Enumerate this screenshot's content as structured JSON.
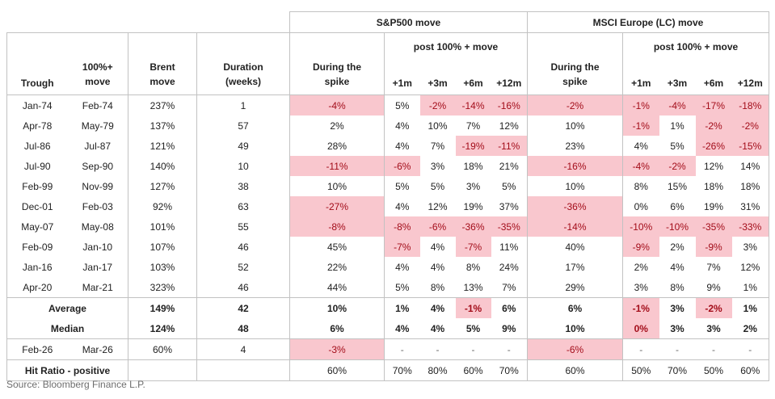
{
  "chart_data": {
    "type": "table",
    "group_headers": {
      "sp": "S&P500 move",
      "msci": "MSCI Europe (LC) move"
    },
    "sub_headers": {
      "post": "post 100% + move",
      "during": "During the spike",
      "months": [
        "+1m",
        "+3m",
        "+6m",
        "+12m"
      ]
    },
    "left_headers": {
      "trough": "Trough",
      "move": "100%+ move",
      "brent": "Brent move",
      "duration": "Duration (weeks)"
    },
    "colors": {
      "highlight_bg": "#f9c7ce",
      "highlight_text": "#a30d1a",
      "border": "#c2c2c2"
    },
    "rows": [
      {
        "section": "history",
        "trough": "Jan-74",
        "move": "Feb-74",
        "brent": "237%",
        "duration": "1",
        "sp": [
          {
            "v": "-4%",
            "hl": true
          },
          {
            "v": "5%"
          },
          {
            "v": "-2%",
            "hl": true
          },
          {
            "v": "-14%",
            "hl": true
          },
          {
            "v": "-16%",
            "hl": true
          }
        ],
        "msci": [
          {
            "v": "-2%",
            "hl": true
          },
          {
            "v": "-1%",
            "hl": true
          },
          {
            "v": "-4%",
            "hl": true
          },
          {
            "v": "-17%",
            "hl": true
          },
          {
            "v": "-18%",
            "hl": true
          }
        ]
      },
      {
        "section": "history",
        "trough": "Apr-78",
        "move": "May-79",
        "brent": "137%",
        "duration": "57",
        "sp": [
          {
            "v": "2%"
          },
          {
            "v": "4%"
          },
          {
            "v": "10%"
          },
          {
            "v": "7%"
          },
          {
            "v": "12%"
          }
        ],
        "msci": [
          {
            "v": "10%"
          },
          {
            "v": "-1%",
            "hl": true
          },
          {
            "v": "1%"
          },
          {
            "v": "-2%",
            "hl": true
          },
          {
            "v": "-2%",
            "hl": true
          }
        ]
      },
      {
        "section": "history",
        "trough": "Jul-86",
        "move": "Jul-87",
        "brent": "121%",
        "duration": "49",
        "sp": [
          {
            "v": "28%"
          },
          {
            "v": "4%"
          },
          {
            "v": "7%"
          },
          {
            "v": "-19%",
            "hl": true
          },
          {
            "v": "-11%",
            "hl": true
          }
        ],
        "msci": [
          {
            "v": "23%"
          },
          {
            "v": "4%"
          },
          {
            "v": "5%"
          },
          {
            "v": "-26%",
            "hl": true
          },
          {
            "v": "-15%",
            "hl": true
          }
        ]
      },
      {
        "section": "history",
        "trough": "Jul-90",
        "move": "Sep-90",
        "brent": "140%",
        "duration": "10",
        "sp": [
          {
            "v": "-11%",
            "hl": true
          },
          {
            "v": "-6%",
            "hl": true
          },
          {
            "v": "3%"
          },
          {
            "v": "18%"
          },
          {
            "v": "21%"
          }
        ],
        "msci": [
          {
            "v": "-16%",
            "hl": true
          },
          {
            "v": "-4%",
            "hl": true
          },
          {
            "v": "-2%",
            "hl": true
          },
          {
            "v": "12%"
          },
          {
            "v": "14%"
          }
        ]
      },
      {
        "section": "history",
        "trough": "Feb-99",
        "move": "Nov-99",
        "brent": "127%",
        "duration": "38",
        "sp": [
          {
            "v": "10%"
          },
          {
            "v": "5%"
          },
          {
            "v": "5%"
          },
          {
            "v": "3%"
          },
          {
            "v": "5%"
          }
        ],
        "msci": [
          {
            "v": "10%"
          },
          {
            "v": "8%"
          },
          {
            "v": "15%"
          },
          {
            "v": "18%"
          },
          {
            "v": "18%"
          }
        ]
      },
      {
        "section": "history",
        "trough": "Dec-01",
        "move": "Feb-03",
        "brent": "92%",
        "duration": "63",
        "sp": [
          {
            "v": "-27%",
            "hl": true
          },
          {
            "v": "4%"
          },
          {
            "v": "12%"
          },
          {
            "v": "19%"
          },
          {
            "v": "37%"
          }
        ],
        "msci": [
          {
            "v": "-36%",
            "hl": true
          },
          {
            "v": "0%"
          },
          {
            "v": "6%"
          },
          {
            "v": "19%"
          },
          {
            "v": "31%"
          }
        ]
      },
      {
        "section": "history",
        "trough": "May-07",
        "move": "May-08",
        "brent": "101%",
        "duration": "55",
        "sp": [
          {
            "v": "-8%",
            "hl": true
          },
          {
            "v": "-8%",
            "hl": true
          },
          {
            "v": "-6%",
            "hl": true
          },
          {
            "v": "-36%",
            "hl": true
          },
          {
            "v": "-35%",
            "hl": true
          }
        ],
        "msci": [
          {
            "v": "-14%",
            "hl": true
          },
          {
            "v": "-10%",
            "hl": true
          },
          {
            "v": "-10%",
            "hl": true
          },
          {
            "v": "-35%",
            "hl": true
          },
          {
            "v": "-33%",
            "hl": true
          }
        ]
      },
      {
        "section": "history",
        "trough": "Feb-09",
        "move": "Jan-10",
        "brent": "107%",
        "duration": "46",
        "sp": [
          {
            "v": "45%"
          },
          {
            "v": "-7%",
            "hl": true
          },
          {
            "v": "4%"
          },
          {
            "v": "-7%",
            "hl": true
          },
          {
            "v": "11%"
          }
        ],
        "msci": [
          {
            "v": "40%"
          },
          {
            "v": "-9%",
            "hl": true
          },
          {
            "v": "2%"
          },
          {
            "v": "-9%",
            "hl": true
          },
          {
            "v": "3%"
          }
        ]
      },
      {
        "section": "history",
        "trough": "Jan-16",
        "move": "Jan-17",
        "brent": "103%",
        "duration": "52",
        "sp": [
          {
            "v": "22%"
          },
          {
            "v": "4%"
          },
          {
            "v": "4%"
          },
          {
            "v": "8%"
          },
          {
            "v": "24%"
          }
        ],
        "msci": [
          {
            "v": "17%"
          },
          {
            "v": "2%"
          },
          {
            "v": "4%"
          },
          {
            "v": "7%"
          },
          {
            "v": "12%"
          }
        ]
      },
      {
        "section": "history",
        "trough": "Apr-20",
        "move": "Mar-21",
        "brent": "323%",
        "duration": "46",
        "sp": [
          {
            "v": "44%"
          },
          {
            "v": "5%"
          },
          {
            "v": "8%"
          },
          {
            "v": "13%"
          },
          {
            "v": "7%"
          }
        ],
        "msci": [
          {
            "v": "29%"
          },
          {
            "v": "3%"
          },
          {
            "v": "8%"
          },
          {
            "v": "9%"
          },
          {
            "v": "1%"
          }
        ]
      },
      {
        "section": "summary",
        "label": "Average",
        "bold": true,
        "brent": "149%",
        "duration": "42",
        "sp": [
          {
            "v": "10%"
          },
          {
            "v": "1%"
          },
          {
            "v": "4%"
          },
          {
            "v": "-1%",
            "hl": true
          },
          {
            "v": "6%"
          }
        ],
        "msci": [
          {
            "v": "6%"
          },
          {
            "v": "-1%",
            "hl": true
          },
          {
            "v": "3%"
          },
          {
            "v": "-2%",
            "hl": true
          },
          {
            "v": "1%"
          }
        ]
      },
      {
        "section": "summary",
        "label": "Median",
        "bold": true,
        "brent": "124%",
        "duration": "48",
        "sp": [
          {
            "v": "6%"
          },
          {
            "v": "4%"
          },
          {
            "v": "4%"
          },
          {
            "v": "5%"
          },
          {
            "v": "9%"
          }
        ],
        "msci": [
          {
            "v": "10%"
          },
          {
            "v": "0%",
            "hl": true
          },
          {
            "v": "3%"
          },
          {
            "v": "3%"
          },
          {
            "v": "2%"
          }
        ]
      },
      {
        "section": "current",
        "trough": "Feb-26",
        "move": "Mar-26",
        "brent": "60%",
        "duration": "4",
        "sp": [
          {
            "v": "-3%",
            "hl": true
          },
          {
            "v": "-"
          },
          {
            "v": "-"
          },
          {
            "v": "-"
          },
          {
            "v": "-"
          }
        ],
        "msci": [
          {
            "v": "-6%",
            "hl": true
          },
          {
            "v": "-"
          },
          {
            "v": "-"
          },
          {
            "v": "-"
          },
          {
            "v": "-"
          }
        ]
      },
      {
        "section": "hitratio",
        "label": "Hit Ratio - positive",
        "brent": "",
        "duration": "",
        "sp": [
          {
            "v": "60%"
          },
          {
            "v": "70%"
          },
          {
            "v": "80%"
          },
          {
            "v": "60%"
          },
          {
            "v": "70%"
          }
        ],
        "msci": [
          {
            "v": "60%"
          },
          {
            "v": "50%"
          },
          {
            "v": "70%"
          },
          {
            "v": "50%"
          },
          {
            "v": "60%"
          }
        ]
      }
    ],
    "source": "Source: Bloomberg Finance L.P."
  }
}
